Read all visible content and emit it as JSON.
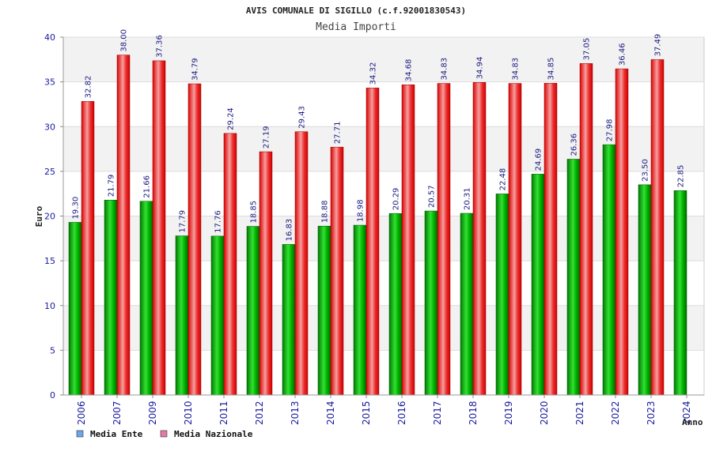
{
  "chart_data": {
    "type": "bar",
    "title": "AVIS COMUNALE DI SIGILLO (c.f.92001830543)",
    "subtitle": "Media Importi",
    "xlabel": "Anno",
    "ylabel": "Euro",
    "ylim": [
      0,
      40
    ],
    "yticks": [
      "0",
      "5",
      "10",
      "15",
      "20",
      "25",
      "30",
      "35",
      "40"
    ],
    "grid": true,
    "legend_position": "bottom-left",
    "categories": [
      "2006",
      "2007",
      "2009",
      "2010",
      "2011",
      "2012",
      "2013",
      "2014",
      "2015",
      "2016",
      "2017",
      "2018",
      "2019",
      "2020",
      "2021",
      "2022",
      "2023",
      "2024"
    ],
    "series": [
      {
        "name": "Media Ente",
        "color": "#00aa00",
        "legend_color": "#6aa6e8",
        "values": [
          19.3,
          21.79,
          21.66,
          17.79,
          17.76,
          18.85,
          16.83,
          18.88,
          18.98,
          20.29,
          20.57,
          20.31,
          22.48,
          24.69,
          26.36,
          27.98,
          23.5,
          22.85
        ],
        "labels": [
          "19.30",
          "21.79",
          "21.66",
          "17.79",
          "17.76",
          "18.85",
          "16.83",
          "18.88",
          "18.98",
          "20.29",
          "20.57",
          "20.31",
          "22.48",
          "24.69",
          "26.36",
          "27.98",
          "23.50",
          "22.85"
        ]
      },
      {
        "name": "Media Nazionale",
        "color": "#ee1111",
        "legend_color": "#e07aa8",
        "values": [
          32.82,
          38.0,
          37.36,
          34.79,
          29.24,
          27.19,
          29.43,
          27.71,
          34.32,
          34.68,
          34.83,
          34.94,
          34.83,
          34.85,
          37.05,
          36.46,
          37.49,
          null
        ],
        "labels": [
          "32.82",
          "38.00",
          "37.36",
          "34.79",
          "29.24",
          "27.19",
          "29.43",
          "27.71",
          "34.32",
          "34.68",
          "34.83",
          "34.94",
          "34.83",
          "34.85",
          "37.05",
          "36.46",
          "37.49",
          ""
        ]
      }
    ]
  }
}
